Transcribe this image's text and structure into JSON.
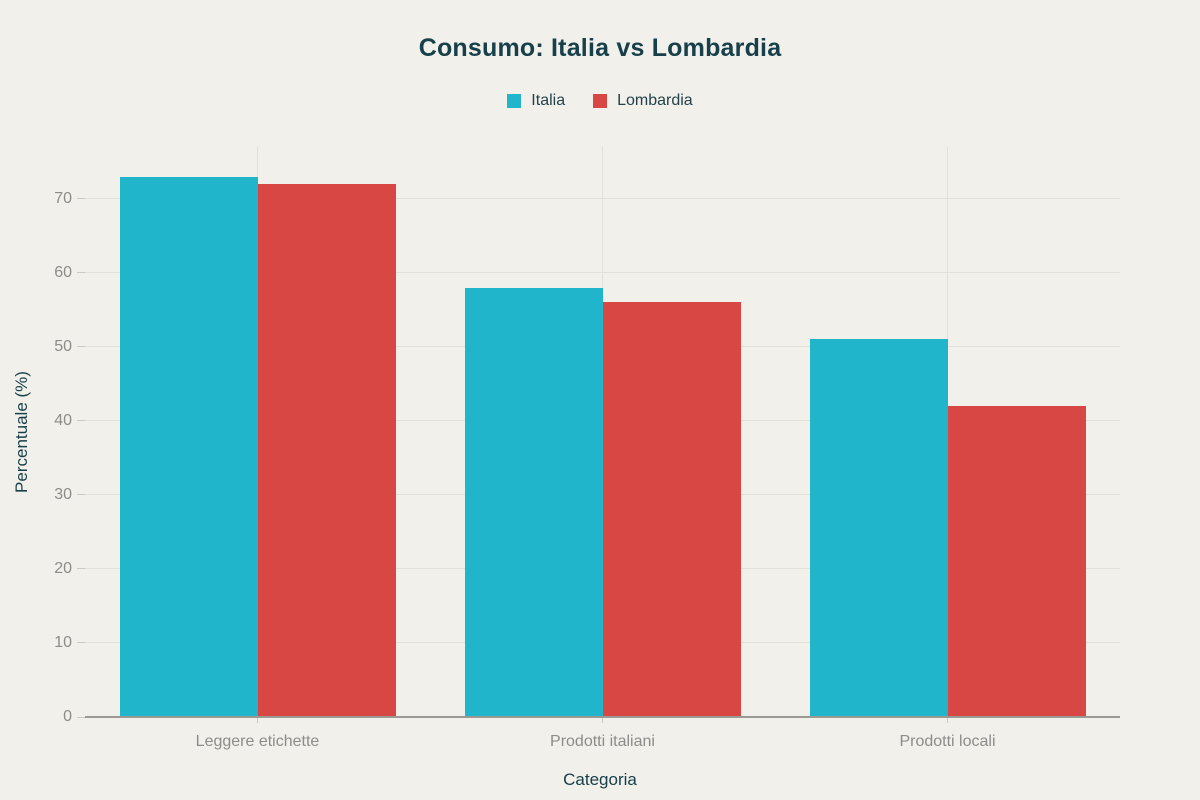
{
  "chart_data": {
    "type": "bar",
    "title": "Consumo: Italia vs Lombardia",
    "categories": [
      "Leggere etichette",
      "Prodotti italiani",
      "Prodotti locali"
    ],
    "series": [
      {
        "name": "Italia",
        "color": "#20b5cb",
        "values": [
          73,
          58,
          51
        ]
      },
      {
        "name": "Lombardia",
        "color": "#d94744",
        "values": [
          72,
          56,
          42
        ]
      }
    ],
    "xlabel": "Categoria",
    "ylabel": "Percentuale (%)",
    "ylim": [
      0,
      77
    ],
    "yticks": [
      0,
      10,
      20,
      30,
      40,
      50,
      60,
      70
    ],
    "grid": true,
    "legend_position": "top-center"
  },
  "colors": {
    "background": "#f1f0ea",
    "title_text": "#17404b",
    "tick_text": "#8c8c8c",
    "gridline": "#e2e1d9",
    "axis_line": "#9a9993",
    "italia": "#20b5cb",
    "lombardia": "#d94744"
  }
}
